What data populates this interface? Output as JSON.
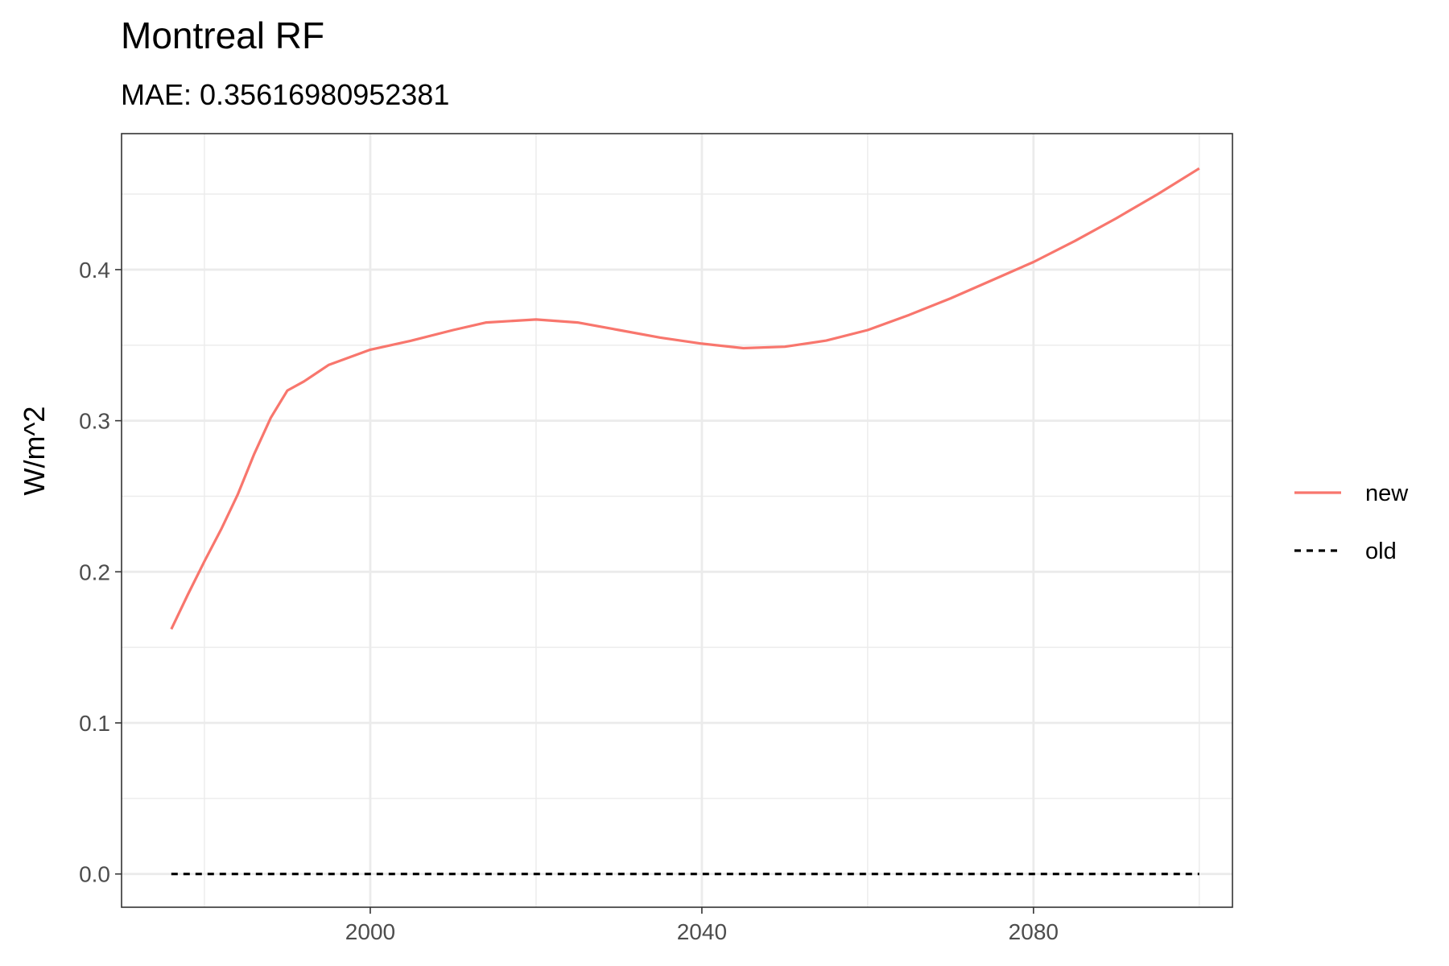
{
  "chart_data": {
    "type": "line",
    "title": "Montreal RF",
    "subtitle": "MAE: 0.35616980952381",
    "xlabel": "",
    "ylabel": "W/m^2",
    "xlim": [
      1970,
      2104
    ],
    "ylim": [
      -0.022,
      0.49
    ],
    "x_ticks": [
      2000,
      2040,
      2080
    ],
    "x_minor_ticks": [
      1980,
      2020,
      2060,
      2100
    ],
    "y_ticks": [
      0.0,
      0.1,
      0.2,
      0.3,
      0.4
    ],
    "y_tick_labels": [
      "0.0",
      "0.1",
      "0.2",
      "0.3",
      "0.4"
    ],
    "y_minor_ticks": [
      0.05,
      0.15,
      0.25,
      0.35,
      0.45
    ],
    "grid": true,
    "legend_position": "right",
    "series": [
      {
        "name": "new",
        "color": "#F8766D",
        "style": "solid",
        "x": [
          1976,
          1978,
          1980,
          1982,
          1984,
          1986,
          1988,
          1990,
          1992,
          1995,
          2000,
          2005,
          2010,
          2014,
          2020,
          2025,
          2030,
          2035,
          2040,
          2045,
          2050,
          2055,
          2060,
          2065,
          2070,
          2075,
          2080,
          2085,
          2090,
          2095,
          2100
        ],
        "y": [
          0.162,
          0.185,
          0.207,
          0.228,
          0.251,
          0.278,
          0.302,
          0.32,
          0.326,
          0.337,
          0.347,
          0.353,
          0.36,
          0.365,
          0.367,
          0.365,
          0.36,
          0.355,
          0.351,
          0.348,
          0.349,
          0.353,
          0.36,
          0.37,
          0.381,
          0.393,
          0.405,
          0.419,
          0.434,
          0.45,
          0.467
        ]
      },
      {
        "name": "old",
        "color": "#000000",
        "style": "dashed",
        "x": [
          1976,
          2100
        ],
        "y": [
          0.0,
          0.0
        ]
      }
    ]
  }
}
